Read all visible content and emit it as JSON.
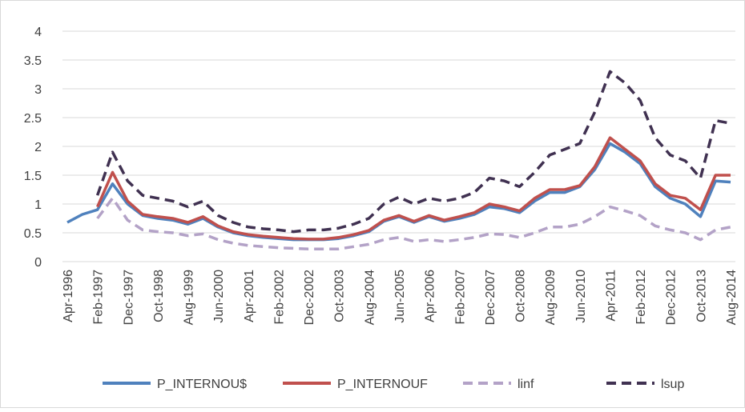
{
  "chart_data": {
    "type": "line",
    "categories": [
      "Apr-1996",
      null,
      "Feb-1997",
      null,
      "Dec-1997",
      null,
      "Oct-1998",
      null,
      "Aug-1999",
      null,
      "Jun-2000",
      null,
      "Apr-2001",
      null,
      "Feb-2002",
      null,
      "Dec-2002",
      null,
      "Oct-2003",
      null,
      "Aug-2004",
      null,
      "Jun-2005",
      null,
      "Apr-2006",
      null,
      "Feb-2007",
      null,
      "Dec-2007",
      null,
      "Oct-2008",
      null,
      "Aug-2009",
      null,
      "Jun-2010",
      null,
      "Apr-2011",
      null,
      "Feb-2012",
      null,
      "Dec-2012",
      null,
      "Oct-2013",
      null,
      "Aug-2014"
    ],
    "series": [
      {
        "name": "P_INTERNOU$",
        "color": "#4f81bd",
        "dash": false,
        "values": [
          0.68,
          0.82,
          0.9,
          1.35,
          1.0,
          0.8,
          0.75,
          0.72,
          0.65,
          0.75,
          0.6,
          0.5,
          0.45,
          0.42,
          0.4,
          0.38,
          0.38,
          0.38,
          0.4,
          0.45,
          0.52,
          0.7,
          0.78,
          0.68,
          0.78,
          0.7,
          0.75,
          0.82,
          0.95,
          0.92,
          0.85,
          1.05,
          1.2,
          1.2,
          1.3,
          1.6,
          2.05,
          1.9,
          1.7,
          1.3,
          1.1,
          1.0,
          0.78,
          1.4,
          1.38
        ]
      },
      {
        "name": "P_INTERNOUF",
        "color": "#c0504d",
        "dash": false,
        "values": [
          null,
          null,
          0.95,
          1.55,
          1.05,
          0.82,
          0.78,
          0.75,
          0.68,
          0.78,
          0.62,
          0.52,
          0.47,
          0.44,
          0.42,
          0.4,
          0.39,
          0.39,
          0.42,
          0.47,
          0.54,
          0.72,
          0.8,
          0.7,
          0.8,
          0.72,
          0.78,
          0.85,
          1.0,
          0.95,
          0.88,
          1.1,
          1.25,
          1.25,
          1.32,
          1.65,
          2.15,
          1.95,
          1.75,
          1.35,
          1.15,
          1.1,
          0.9,
          1.5,
          1.5
        ]
      },
      {
        "name": "linf",
        "color": "#b3a2c7",
        "dash": true,
        "values": [
          null,
          null,
          0.75,
          1.1,
          0.72,
          0.55,
          0.52,
          0.5,
          0.45,
          0.48,
          0.38,
          0.32,
          0.28,
          0.26,
          0.24,
          0.23,
          0.22,
          0.22,
          0.22,
          0.26,
          0.3,
          0.38,
          0.42,
          0.35,
          0.38,
          0.35,
          0.38,
          0.42,
          0.48,
          0.47,
          0.42,
          0.5,
          0.6,
          0.6,
          0.65,
          0.78,
          0.95,
          0.88,
          0.8,
          0.62,
          0.55,
          0.5,
          0.38,
          0.55,
          0.6
        ]
      },
      {
        "name": "lsup",
        "color": "#403151",
        "dash": true,
        "values": [
          null,
          null,
          1.15,
          1.9,
          1.4,
          1.15,
          1.1,
          1.05,
          0.95,
          1.05,
          0.8,
          0.68,
          0.6,
          0.57,
          0.55,
          0.52,
          0.55,
          0.55,
          0.58,
          0.65,
          0.75,
          1.0,
          1.12,
          1.0,
          1.1,
          1.05,
          1.1,
          1.2,
          1.45,
          1.4,
          1.3,
          1.55,
          1.85,
          1.95,
          2.05,
          2.6,
          3.3,
          3.1,
          2.8,
          2.15,
          1.85,
          1.75,
          1.45,
          2.45,
          2.4
        ]
      }
    ],
    "ylim": [
      0,
      4
    ],
    "yticks": [
      0,
      0.5,
      1,
      1.5,
      2,
      2.5,
      3,
      3.5,
      4
    ],
    "grid": true,
    "legend": "bottom"
  }
}
